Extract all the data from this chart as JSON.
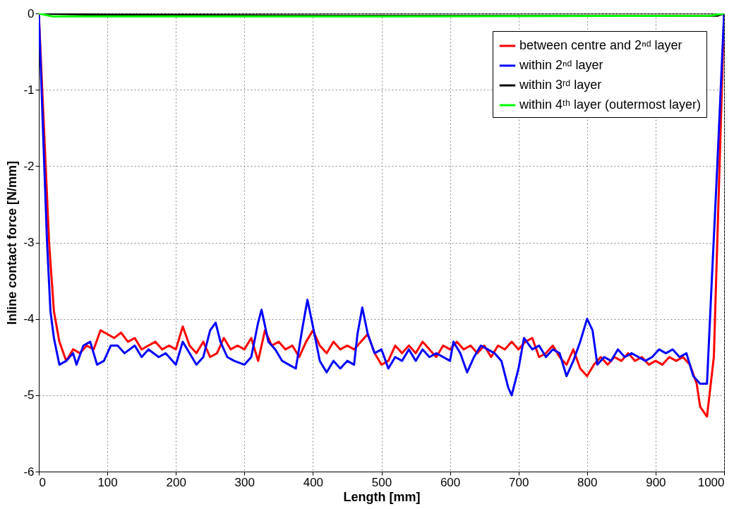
{
  "chart_data": {
    "type": "line",
    "xlabel": "Length [mm]",
    "ylabel": "Inline contact force [N/mm]",
    "xlim": [
      0,
      1000
    ],
    "ylim": [
      -6,
      0
    ],
    "xticks": [
      0,
      100,
      200,
      300,
      400,
      500,
      600,
      700,
      800,
      900,
      1000
    ],
    "yticks": [
      -6,
      -5,
      -4,
      -3,
      -2,
      -1,
      0
    ],
    "grid": true,
    "legend": "top right",
    "marker": "none",
    "line_style": "solid",
    "series": [
      {
        "name": "between centre and 2ⁿᵈ layer",
        "color": "#ff0000",
        "x": [
          0,
          5,
          10,
          15,
          22,
          30,
          40,
          50,
          60,
          70,
          80,
          90,
          100,
          110,
          120,
          130,
          140,
          150,
          160,
          170,
          180,
          190,
          200,
          210,
          220,
          230,
          240,
          250,
          260,
          270,
          280,
          290,
          300,
          310,
          320,
          330,
          340,
          350,
          360,
          370,
          380,
          390,
          400,
          410,
          420,
          430,
          440,
          450,
          460,
          470,
          480,
          490,
          500,
          510,
          520,
          530,
          540,
          550,
          560,
          570,
          580,
          590,
          600,
          610,
          620,
          630,
          640,
          650,
          660,
          670,
          680,
          690,
          700,
          710,
          720,
          730,
          740,
          750,
          760,
          770,
          780,
          790,
          800,
          810,
          820,
          830,
          840,
          850,
          860,
          870,
          880,
          890,
          900,
          910,
          920,
          930,
          940,
          950,
          960,
          965,
          975,
          985,
          990,
          995,
          1000
        ],
        "values": [
          0,
          -1,
          -2,
          -3,
          -3.9,
          -4.3,
          -4.55,
          -4.4,
          -4.45,
          -4.35,
          -4.4,
          -4.15,
          -4.2,
          -4.25,
          -4.18,
          -4.3,
          -4.25,
          -4.4,
          -4.35,
          -4.3,
          -4.4,
          -4.35,
          -4.4,
          -4.1,
          -4.35,
          -4.45,
          -4.3,
          -4.5,
          -4.45,
          -4.25,
          -4.4,
          -4.35,
          -4.4,
          -4.25,
          -4.55,
          -4.15,
          -4.35,
          -4.3,
          -4.4,
          -4.35,
          -4.5,
          -4.3,
          -4.15,
          -4.35,
          -4.45,
          -4.3,
          -4.4,
          -4.35,
          -4.4,
          -4.3,
          -4.2,
          -4.45,
          -4.6,
          -4.55,
          -4.35,
          -4.45,
          -4.35,
          -4.45,
          -4.3,
          -4.4,
          -4.5,
          -4.35,
          -4.4,
          -4.3,
          -4.4,
          -4.35,
          -4.45,
          -4.35,
          -4.5,
          -4.35,
          -4.4,
          -4.3,
          -4.4,
          -4.3,
          -4.25,
          -4.5,
          -4.45,
          -4.35,
          -4.5,
          -4.6,
          -4.4,
          -4.65,
          -4.75,
          -4.6,
          -4.5,
          -4.6,
          -4.5,
          -4.55,
          -4.45,
          -4.55,
          -4.5,
          -4.6,
          -4.55,
          -4.6,
          -4.5,
          -4.55,
          -4.5,
          -4.6,
          -4.85,
          -5.15,
          -5.28,
          -4.5,
          -3,
          -1.5,
          0
        ]
      },
      {
        "name": "within 2ⁿᵈ layer",
        "color": "#0000ff",
        "x": [
          0,
          4,
          8,
          12,
          17,
          22,
          30,
          40,
          50,
          55,
          65,
          75,
          85,
          95,
          105,
          115,
          125,
          140,
          150,
          160,
          175,
          185,
          200,
          210,
          220,
          230,
          240,
          250,
          258,
          265,
          275,
          285,
          300,
          310,
          320,
          325,
          335,
          345,
          355,
          365,
          375,
          385,
          392,
          400,
          410,
          420,
          430,
          440,
          450,
          460,
          465,
          472,
          480,
          490,
          500,
          510,
          520,
          530,
          540,
          550,
          560,
          570,
          580,
          590,
          600,
          605,
          615,
          625,
          635,
          645,
          655,
          665,
          675,
          685,
          690,
          700,
          708,
          720,
          730,
          740,
          750,
          760,
          770,
          780,
          790,
          800,
          808,
          815,
          825,
          835,
          845,
          855,
          865,
          875,
          885,
          895,
          905,
          915,
          925,
          935,
          945,
          955,
          965,
          975,
          982,
          990,
          995,
          1000
        ],
        "values": [
          0,
          -1,
          -2,
          -3,
          -3.9,
          -4.25,
          -4.6,
          -4.55,
          -4.45,
          -4.6,
          -4.35,
          -4.3,
          -4.6,
          -4.55,
          -4.35,
          -4.35,
          -4.45,
          -4.35,
          -4.5,
          -4.4,
          -4.5,
          -4.45,
          -4.6,
          -4.3,
          -4.45,
          -4.6,
          -4.5,
          -4.15,
          -4.05,
          -4.3,
          -4.5,
          -4.55,
          -4.6,
          -4.5,
          -4.05,
          -3.88,
          -4.3,
          -4.4,
          -4.55,
          -4.6,
          -4.65,
          -4.1,
          -3.75,
          -4.1,
          -4.55,
          -4.7,
          -4.55,
          -4.65,
          -4.55,
          -4.6,
          -4.2,
          -3.85,
          -4.2,
          -4.45,
          -4.4,
          -4.65,
          -4.5,
          -4.55,
          -4.4,
          -4.55,
          -4.4,
          -4.5,
          -4.45,
          -4.5,
          -4.55,
          -4.3,
          -4.45,
          -4.7,
          -4.5,
          -4.35,
          -4.4,
          -4.45,
          -4.55,
          -4.9,
          -5,
          -4.65,
          -4.25,
          -4.4,
          -4.35,
          -4.5,
          -4.4,
          -4.45,
          -4.75,
          -4.55,
          -4.3,
          -4,
          -4.15,
          -4.6,
          -4.5,
          -4.55,
          -4.4,
          -4.5,
          -4.45,
          -4.5,
          -4.55,
          -4.5,
          -4.4,
          -4.45,
          -4.4,
          -4.5,
          -4.45,
          -4.75,
          -4.85,
          -4.85,
          -3.5,
          -2,
          -1,
          0
        ]
      },
      {
        "name": "within 3ʳᵈ layer",
        "color": "#000000",
        "x": [
          0,
          100,
          500,
          900,
          990,
          1000
        ],
        "values": [
          0,
          -0.02,
          -0.03,
          -0.03,
          -0.03,
          0
        ]
      },
      {
        "name": "within 4ᵗʰ layer (outermost layer)",
        "color": "#00ff00",
        "x": [
          0,
          20,
          500,
          980,
          1000
        ],
        "values": [
          0,
          -0.04,
          -0.04,
          -0.03,
          0
        ]
      }
    ]
  }
}
